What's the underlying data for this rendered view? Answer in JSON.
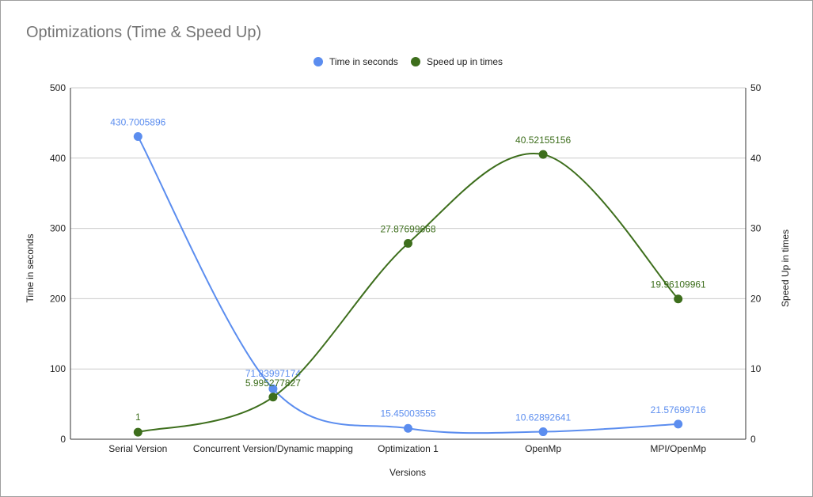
{
  "chart_data": {
    "type": "line",
    "title": "Optimizations (Time & Speed Up)",
    "xlabel": "Versions",
    "ylabel": "Time in seconds",
    "y2label": "Speed Up in times",
    "categories": [
      "Serial Version",
      "Concurrent Version/Dynamic mapping",
      "Optimization 1",
      "OpenMp",
      "MPI/OpenMp"
    ],
    "ylim": [
      0,
      500
    ],
    "y2lim": [
      0,
      50
    ],
    "yticks": [
      "0",
      "100",
      "200",
      "300",
      "400",
      "500"
    ],
    "y2ticks": [
      "0",
      "10",
      "20",
      "30",
      "40",
      "50"
    ],
    "grid": true,
    "smooth": true,
    "legend_position": "top",
    "series": [
      {
        "name": "Time in seconds",
        "axis": "left",
        "color": "#5b8def",
        "values": [
          430.7005896,
          71.83997174,
          15.45003555,
          10.62892641,
          21.57699716
        ],
        "labels": [
          "430.7005896",
          "71.83997174",
          "15.45003555",
          "10.62892641",
          "21.57699716"
        ]
      },
      {
        "name": "Speed up in times",
        "axis": "right",
        "color": "#3d6e1c",
        "values": [
          1,
          5.995277827,
          27.87699668,
          40.52155156,
          19.96109961
        ],
        "labels": [
          "1",
          "5.995277827",
          "27.87699668",
          "40.52155156",
          "19.96109961"
        ]
      }
    ]
  }
}
